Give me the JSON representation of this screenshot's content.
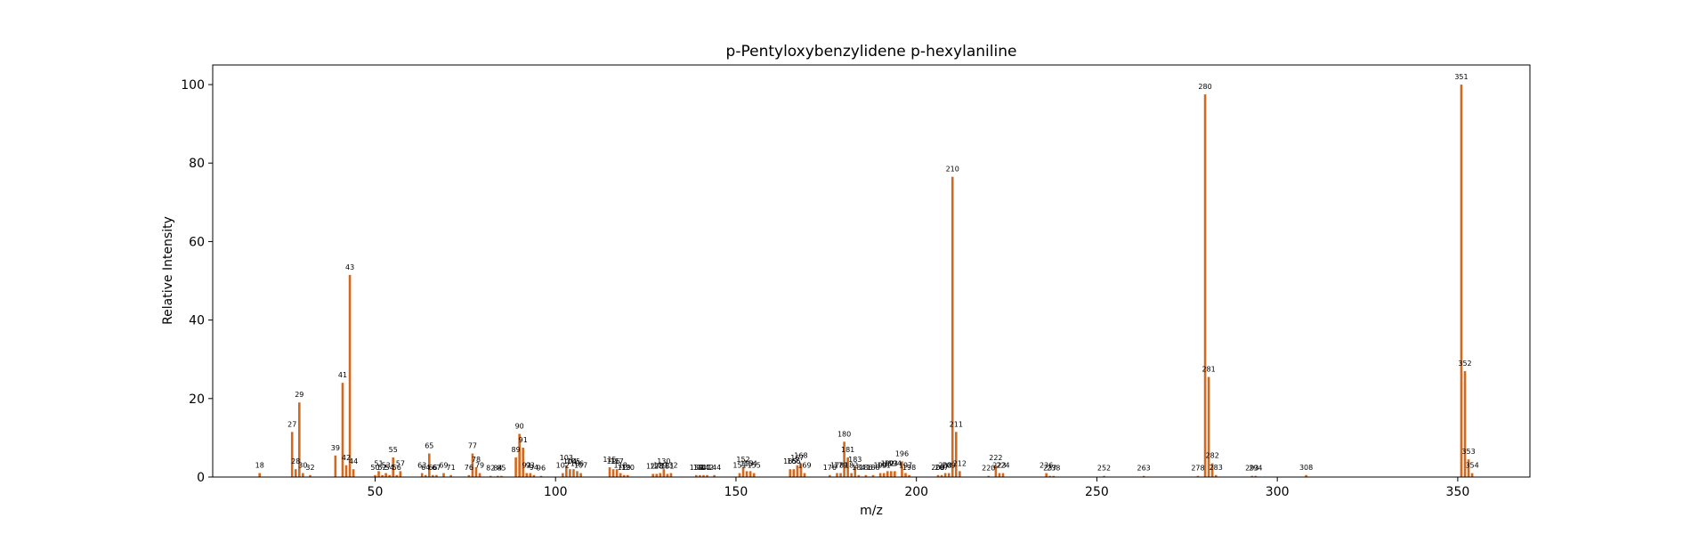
{
  "chart_data": {
    "type": "bar",
    "title": "p-Pentyloxybenzylidene p-hexylaniline",
    "xlabel": "m/z",
    "ylabel": "Relative Intensity",
    "xlim": [
      5,
      370
    ],
    "ylim": [
      0,
      105
    ],
    "xticks": [
      50,
      100,
      150,
      200,
      250,
      300,
      350
    ],
    "yticks": [
      0,
      20,
      40,
      60,
      80,
      100
    ],
    "grid": false,
    "bar_color": "#d2691e",
    "peaks": [
      {
        "mz": 18,
        "intensity": 1.0
      },
      {
        "mz": 27,
        "intensity": 11.5
      },
      {
        "mz": 28,
        "intensity": 2.0
      },
      {
        "mz": 29,
        "intensity": 19.0
      },
      {
        "mz": 30,
        "intensity": 1.0
      },
      {
        "mz": 32,
        "intensity": 0.5
      },
      {
        "mz": 39,
        "intensity": 5.5
      },
      {
        "mz": 41,
        "intensity": 24.0
      },
      {
        "mz": 42,
        "intensity": 3.0
      },
      {
        "mz": 43,
        "intensity": 51.5
      },
      {
        "mz": 44,
        "intensity": 2.0
      },
      {
        "mz": 50,
        "intensity": 0.5
      },
      {
        "mz": 51,
        "intensity": 1.5
      },
      {
        "mz": 52,
        "intensity": 0.5
      },
      {
        "mz": 53,
        "intensity": 1.0
      },
      {
        "mz": 54,
        "intensity": 0.5
      },
      {
        "mz": 55,
        "intensity": 5.0
      },
      {
        "mz": 56,
        "intensity": 0.5
      },
      {
        "mz": 57,
        "intensity": 1.5
      },
      {
        "mz": 63,
        "intensity": 1.0
      },
      {
        "mz": 64,
        "intensity": 0.5
      },
      {
        "mz": 65,
        "intensity": 6.0
      },
      {
        "mz": 66,
        "intensity": 0.5
      },
      {
        "mz": 67,
        "intensity": 0.5
      },
      {
        "mz": 69,
        "intensity": 1.0
      },
      {
        "mz": 71,
        "intensity": 0.5
      },
      {
        "mz": 76,
        "intensity": 0.5
      },
      {
        "mz": 77,
        "intensity": 6.0
      },
      {
        "mz": 78,
        "intensity": 2.5
      },
      {
        "mz": 79,
        "intensity": 1.0
      },
      {
        "mz": 82,
        "intensity": 0.3
      },
      {
        "mz": 84,
        "intensity": 0.3
      },
      {
        "mz": 85,
        "intensity": 0.3
      },
      {
        "mz": 89,
        "intensity": 5.0
      },
      {
        "mz": 90,
        "intensity": 11.0
      },
      {
        "mz": 91,
        "intensity": 7.5
      },
      {
        "mz": 92,
        "intensity": 1.0
      },
      {
        "mz": 93,
        "intensity": 1.0
      },
      {
        "mz": 94,
        "intensity": 0.5
      },
      {
        "mz": 96,
        "intensity": 0.3
      },
      {
        "mz": 102,
        "intensity": 1.0
      },
      {
        "mz": 103,
        "intensity": 3.0
      },
      {
        "mz": 104,
        "intensity": 2.0
      },
      {
        "mz": 105,
        "intensity": 2.0
      },
      {
        "mz": 106,
        "intensity": 1.5
      },
      {
        "mz": 107,
        "intensity": 1.0
      },
      {
        "mz": 115,
        "intensity": 2.5
      },
      {
        "mz": 116,
        "intensity": 2.0
      },
      {
        "mz": 117,
        "intensity": 2.0
      },
      {
        "mz": 118,
        "intensity": 1.0
      },
      {
        "mz": 119,
        "intensity": 0.5
      },
      {
        "mz": 120,
        "intensity": 0.5
      },
      {
        "mz": 127,
        "intensity": 0.8
      },
      {
        "mz": 128,
        "intensity": 0.8
      },
      {
        "mz": 129,
        "intensity": 1.0
      },
      {
        "mz": 130,
        "intensity": 2.0
      },
      {
        "mz": 131,
        "intensity": 0.8
      },
      {
        "mz": 132,
        "intensity": 1.0
      },
      {
        "mz": 139,
        "intensity": 0.5
      },
      {
        "mz": 140,
        "intensity": 0.5
      },
      {
        "mz": 141,
        "intensity": 0.5
      },
      {
        "mz": 142,
        "intensity": 0.5
      },
      {
        "mz": 144,
        "intensity": 0.5
      },
      {
        "mz": 151,
        "intensity": 1.0
      },
      {
        "mz": 152,
        "intensity": 2.5
      },
      {
        "mz": 153,
        "intensity": 1.5
      },
      {
        "mz": 154,
        "intensity": 1.5
      },
      {
        "mz": 155,
        "intensity": 1.0
      },
      {
        "mz": 165,
        "intensity": 2.0
      },
      {
        "mz": 166,
        "intensity": 2.0
      },
      {
        "mz": 167,
        "intensity": 3.0
      },
      {
        "mz": 168,
        "intensity": 3.5
      },
      {
        "mz": 169,
        "intensity": 1.0
      },
      {
        "mz": 176,
        "intensity": 0.5
      },
      {
        "mz": 178,
        "intensity": 1.0
      },
      {
        "mz": 179,
        "intensity": 1.0
      },
      {
        "mz": 180,
        "intensity": 9.0
      },
      {
        "mz": 181,
        "intensity": 5.0
      },
      {
        "mz": 182,
        "intensity": 1.0
      },
      {
        "mz": 183,
        "intensity": 2.5
      },
      {
        "mz": 184,
        "intensity": 0.5
      },
      {
        "mz": 186,
        "intensity": 0.5
      },
      {
        "mz": 188,
        "intensity": 0.5
      },
      {
        "mz": 190,
        "intensity": 1.0
      },
      {
        "mz": 191,
        "intensity": 1.0
      },
      {
        "mz": 192,
        "intensity": 1.5
      },
      {
        "mz": 193,
        "intensity": 1.5
      },
      {
        "mz": 194,
        "intensity": 1.5
      },
      {
        "mz": 196,
        "intensity": 4.0
      },
      {
        "mz": 197,
        "intensity": 1.0
      },
      {
        "mz": 198,
        "intensity": 0.5
      },
      {
        "mz": 206,
        "intensity": 0.5
      },
      {
        "mz": 207,
        "intensity": 0.5
      },
      {
        "mz": 208,
        "intensity": 1.0
      },
      {
        "mz": 209,
        "intensity": 1.0
      },
      {
        "mz": 210,
        "intensity": 76.5
      },
      {
        "mz": 211,
        "intensity": 11.5
      },
      {
        "mz": 212,
        "intensity": 1.5
      },
      {
        "mz": 220,
        "intensity": 0.3
      },
      {
        "mz": 222,
        "intensity": 3.0
      },
      {
        "mz": 223,
        "intensity": 1.0
      },
      {
        "mz": 224,
        "intensity": 1.0
      },
      {
        "mz": 236,
        "intensity": 1.0
      },
      {
        "mz": 237,
        "intensity": 0.3
      },
      {
        "mz": 238,
        "intensity": 0.3
      },
      {
        "mz": 252,
        "intensity": 0.3
      },
      {
        "mz": 263,
        "intensity": 0.3
      },
      {
        "mz": 278,
        "intensity": 0.3
      },
      {
        "mz": 280,
        "intensity": 97.5
      },
      {
        "mz": 281,
        "intensity": 25.5
      },
      {
        "mz": 282,
        "intensity": 3.5
      },
      {
        "mz": 283,
        "intensity": 0.5
      },
      {
        "mz": 293,
        "intensity": 0.3
      },
      {
        "mz": 294,
        "intensity": 0.3
      },
      {
        "mz": 308,
        "intensity": 0.5
      },
      {
        "mz": 351,
        "intensity": 100.0
      },
      {
        "mz": 352,
        "intensity": 27.0
      },
      {
        "mz": 353,
        "intensity": 4.5
      },
      {
        "mz": 354,
        "intensity": 1.0
      }
    ]
  }
}
